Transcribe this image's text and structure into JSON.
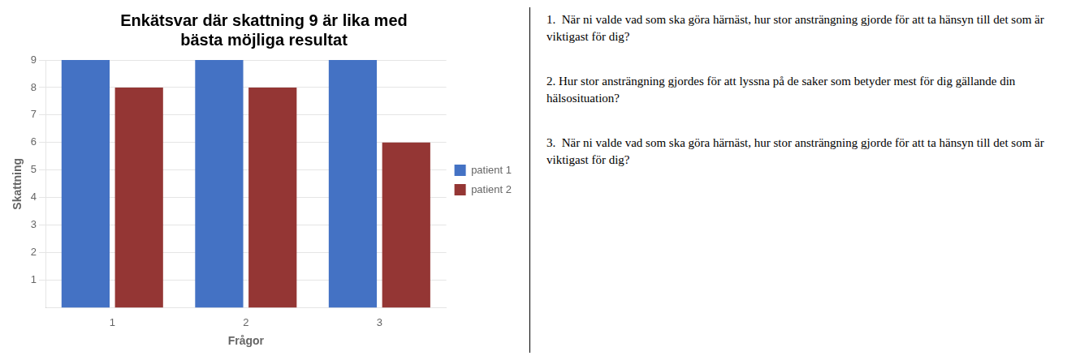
{
  "chart_data": {
    "type": "bar",
    "title": "Enkätsvar där skattning 9 är lika med\nbästa möjliga resultat",
    "x_label": "Frågor",
    "y_label": "Skattning",
    "categories": [
      1,
      2,
      3
    ],
    "series": [
      {
        "name": "patient 1",
        "color": "#4472C4",
        "values": [
          9,
          9,
          9
        ]
      },
      {
        "name": "patient 2",
        "color": "#943634",
        "values": [
          8,
          8,
          6
        ]
      }
    ],
    "ylim": [
      0,
      9
    ],
    "yticks": [
      1,
      2,
      3,
      4,
      5,
      6,
      7,
      8,
      9
    ],
    "grid": true,
    "legend": "right",
    "annotations": [
      "1.  När ni valde vad som ska göra härnäst, hur stor ansträngning gjorde för att ta hänsyn till det som är viktigast för dig?",
      "2. Hur stor ansträngning gjordes för att lyssna på de saker som betyder mest för dig gällande din hälsosituation?",
      "3.  När ni valde vad som ska göra härnäst, hur stor ansträngning gjorde för att ta hänsyn till det som är viktigast för dig?"
    ]
  }
}
